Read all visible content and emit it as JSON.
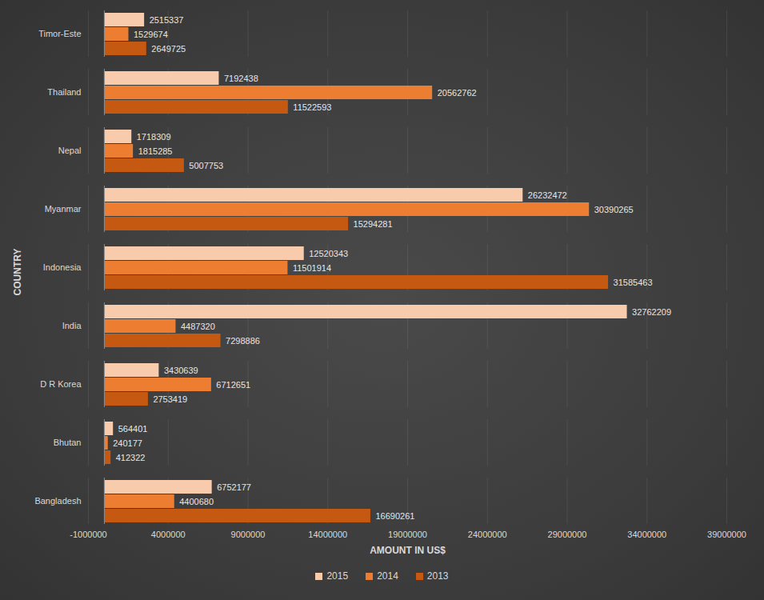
{
  "chart_data": {
    "type": "bar",
    "orientation": "horizontal",
    "x_label": "AMOUNT IN US$",
    "y_label": "COUNTRY",
    "categories": [
      "Bangladesh",
      "Bhutan",
      "D R Korea",
      "India",
      "Indonesia",
      "Myanmar",
      "Nepal",
      "Thailand",
      "Timor-Este"
    ],
    "series": [
      {
        "name": "2015",
        "color": "#f8cbad",
        "values": [
          6752177,
          564401,
          3430639,
          32762209,
          12520343,
          26232472,
          1718309,
          7192438,
          2515337
        ]
      },
      {
        "name": "2014",
        "color": "#ed7d31",
        "values": [
          4400680,
          240177,
          6712651,
          4487320,
          11501914,
          30390265,
          1815285,
          20562762,
          1529674
        ]
      },
      {
        "name": "2013",
        "color": "#c65911",
        "values": [
          16690261,
          412322,
          2753419,
          7298886,
          31585463,
          15294281,
          5007753,
          11522593,
          2649725
        ]
      }
    ],
    "xlim": [
      -1000000,
      39000000
    ],
    "xticks": [
      -1000000,
      4000000,
      9000000,
      14000000,
      19000000,
      24000000,
      29000000,
      34000000,
      39000000
    ],
    "grid": true,
    "legend": "bottom",
    "data_labels": true
  }
}
